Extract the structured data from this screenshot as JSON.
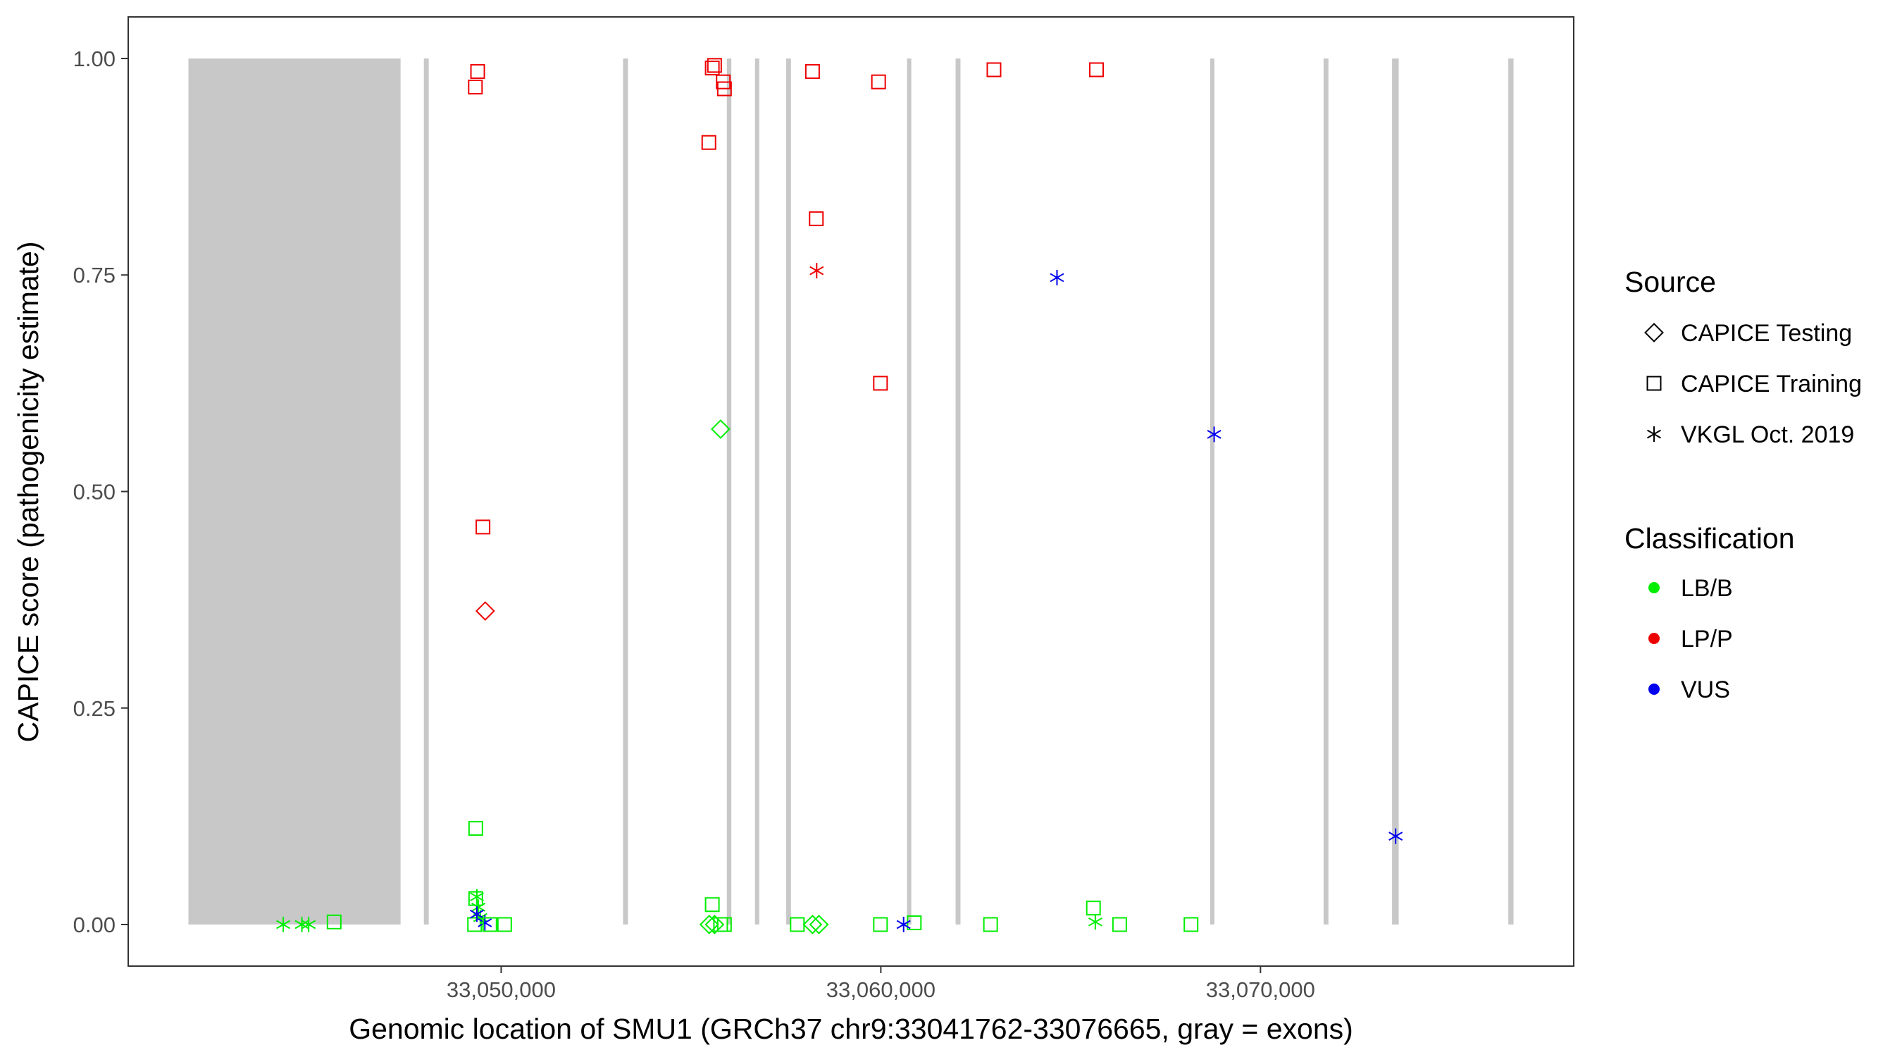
{
  "colors": {
    "exon": "#c8c8c8",
    "LB/B": "#00ee00",
    "LP/P": "#ee0000",
    "VUS": "#0000ee",
    "axis": "#333333",
    "tick_text": "#4d4d4d"
  },
  "chart_data": {
    "type": "scatter",
    "title": "",
    "xlabel": "Genomic location of SMU1 (GRCh37 chr9:33041762-33076665, gray = exons)",
    "ylabel": "CAPICE score (pathogenicity estimate)",
    "xlim": [
      33040176,
      33078251
    ],
    "ylim": [
      -0.048,
      1.048
    ],
    "x_ticks": [
      33050000,
      33060000,
      33070000
    ],
    "x_tick_labels": [
      "33,050,000",
      "33,060,000",
      "33,070,000"
    ],
    "y_ticks": [
      0,
      0.25,
      0.5,
      0.75,
      1
    ],
    "y_tick_labels": [
      "0.00",
      "0.25",
      "0.50",
      "0.75",
      "1.00"
    ],
    "grid": false,
    "exons": [
      [
        33041762,
        33047350
      ],
      [
        33047964,
        33048092
      ],
      [
        33053210,
        33053340
      ],
      [
        33055944,
        33056062
      ],
      [
        33056685,
        33056798
      ],
      [
        33057507,
        33057633
      ],
      [
        33060693,
        33060800
      ],
      [
        33061970,
        33062098
      ],
      [
        33068674,
        33068786
      ],
      [
        33071662,
        33071790
      ],
      [
        33073466,
        33073641
      ],
      [
        33076528,
        33076665
      ]
    ],
    "legend": {
      "position": "right",
      "source_title": "Source",
      "source_items": [
        {
          "label": "CAPICE Testing",
          "shape": "diamond"
        },
        {
          "label": "CAPICE Training",
          "shape": "square"
        },
        {
          "label": "VKGL Oct. 2019",
          "shape": "asterisk"
        }
      ],
      "class_title": "Classification",
      "class_items": [
        {
          "label": "LB/B",
          "key": "LB/B"
        },
        {
          "label": "LP/P",
          "key": "LP/P"
        },
        {
          "label": "VUS",
          "key": "VUS"
        }
      ]
    },
    "points": [
      {
        "x": 33044260,
        "y": 0.0,
        "source": "VKGL Oct. 2019",
        "class": "LB/B"
      },
      {
        "x": 33044750,
        "y": 0.0,
        "source": "VKGL Oct. 2019",
        "class": "LB/B"
      },
      {
        "x": 33044930,
        "y": 0.0,
        "source": "VKGL Oct. 2019",
        "class": "LB/B"
      },
      {
        "x": 33045600,
        "y": 0.003,
        "source": "CAPICE Training",
        "class": "LB/B"
      },
      {
        "x": 33049380,
        "y": 0.985,
        "source": "CAPICE Training",
        "class": "LP/P"
      },
      {
        "x": 33049320,
        "y": 0.967,
        "source": "CAPICE Training",
        "class": "LP/P"
      },
      {
        "x": 33049520,
        "y": 0.459,
        "source": "CAPICE Training",
        "class": "LP/P"
      },
      {
        "x": 33049580,
        "y": 0.362,
        "source": "CAPICE Testing",
        "class": "LP/P"
      },
      {
        "x": 33049330,
        "y": 0.111,
        "source": "CAPICE Training",
        "class": "LB/B"
      },
      {
        "x": 33049330,
        "y": 0.03,
        "source": "CAPICE Training",
        "class": "LB/B"
      },
      {
        "x": 33049360,
        "y": 0.032,
        "source": "VKGL Oct. 2019",
        "class": "LB/B"
      },
      {
        "x": 33049400,
        "y": 0.02,
        "source": "VKGL Oct. 2019",
        "class": "LB/B"
      },
      {
        "x": 33049450,
        "y": 0.008,
        "source": "VKGL Oct. 2019",
        "class": "LB/B"
      },
      {
        "x": 33049300,
        "y": 0.0,
        "source": "CAPICE Training",
        "class": "LB/B"
      },
      {
        "x": 33049360,
        "y": 0.012,
        "source": "VKGL Oct. 2019",
        "class": "VUS"
      },
      {
        "x": 33049570,
        "y": 0.002,
        "source": "VKGL Oct. 2019",
        "class": "VUS"
      },
      {
        "x": 33049700,
        "y": 0.0,
        "source": "CAPICE Training",
        "class": "LB/B"
      },
      {
        "x": 33050090,
        "y": 0.0,
        "source": "CAPICE Training",
        "class": "LB/B"
      },
      {
        "x": 33055560,
        "y": 0.989,
        "source": "CAPICE Training",
        "class": "LP/P"
      },
      {
        "x": 33055620,
        "y": 0.992,
        "source": "CAPICE Training",
        "class": "LP/P"
      },
      {
        "x": 33055850,
        "y": 0.973,
        "source": "CAPICE Training",
        "class": "LP/P"
      },
      {
        "x": 33055880,
        "y": 0.965,
        "source": "CAPICE Training",
        "class": "LP/P"
      },
      {
        "x": 33055470,
        "y": 0.903,
        "source": "CAPICE Training",
        "class": "LP/P"
      },
      {
        "x": 33055780,
        "y": 0.572,
        "source": "CAPICE Testing",
        "class": "LB/B"
      },
      {
        "x": 33055560,
        "y": 0.023,
        "source": "CAPICE Training",
        "class": "LB/B"
      },
      {
        "x": 33055480,
        "y": 0.0,
        "source": "CAPICE Testing",
        "class": "LB/B"
      },
      {
        "x": 33055620,
        "y": 0.0,
        "source": "CAPICE Testing",
        "class": "LB/B"
      },
      {
        "x": 33055780,
        "y": 0.0,
        "source": "CAPICE Training",
        "class": "LB/B"
      },
      {
        "x": 33055880,
        "y": 0.0,
        "source": "CAPICE Training",
        "class": "LB/B"
      },
      {
        "x": 33058200,
        "y": 0.985,
        "source": "CAPICE Training",
        "class": "LP/P"
      },
      {
        "x": 33058300,
        "y": 0.815,
        "source": "CAPICE Training",
        "class": "LP/P"
      },
      {
        "x": 33058310,
        "y": 0.755,
        "source": "VKGL Oct. 2019",
        "class": "LP/P"
      },
      {
        "x": 33057800,
        "y": 0.0,
        "source": "CAPICE Training",
        "class": "LB/B"
      },
      {
        "x": 33058200,
        "y": 0.0,
        "source": "CAPICE Testing",
        "class": "LB/B"
      },
      {
        "x": 33058370,
        "y": 0.0,
        "source": "CAPICE Testing",
        "class": "LB/B"
      },
      {
        "x": 33059940,
        "y": 0.973,
        "source": "CAPICE Training",
        "class": "LP/P"
      },
      {
        "x": 33059990,
        "y": 0.625,
        "source": "CAPICE Training",
        "class": "LP/P"
      },
      {
        "x": 33059990,
        "y": 0.0,
        "source": "CAPICE Training",
        "class": "LB/B"
      },
      {
        "x": 33060880,
        "y": 0.002,
        "source": "CAPICE Training",
        "class": "LB/B"
      },
      {
        "x": 33060600,
        "y": 0.0,
        "source": "VKGL Oct. 2019",
        "class": "VUS"
      },
      {
        "x": 33062980,
        "y": 0.987,
        "source": "CAPICE Training",
        "class": "LP/P"
      },
      {
        "x": 33062890,
        "y": 0.0,
        "source": "CAPICE Training",
        "class": "LB/B"
      },
      {
        "x": 33064640,
        "y": 0.747,
        "source": "VKGL Oct. 2019",
        "class": "VUS"
      },
      {
        "x": 33065680,
        "y": 0.987,
        "source": "CAPICE Training",
        "class": "LP/P"
      },
      {
        "x": 33065600,
        "y": 0.019,
        "source": "CAPICE Training",
        "class": "LB/B"
      },
      {
        "x": 33065650,
        "y": 0.003,
        "source": "VKGL Oct. 2019",
        "class": "LB/B"
      },
      {
        "x": 33066290,
        "y": 0.0,
        "source": "CAPICE Training",
        "class": "LB/B"
      },
      {
        "x": 33068170,
        "y": 0.0,
        "source": "CAPICE Training",
        "class": "LB/B"
      },
      {
        "x": 33068780,
        "y": 0.566,
        "source": "VKGL Oct. 2019",
        "class": "VUS"
      },
      {
        "x": 33073560,
        "y": 0.102,
        "source": "VKGL Oct. 2019",
        "class": "VUS"
      }
    ]
  }
}
